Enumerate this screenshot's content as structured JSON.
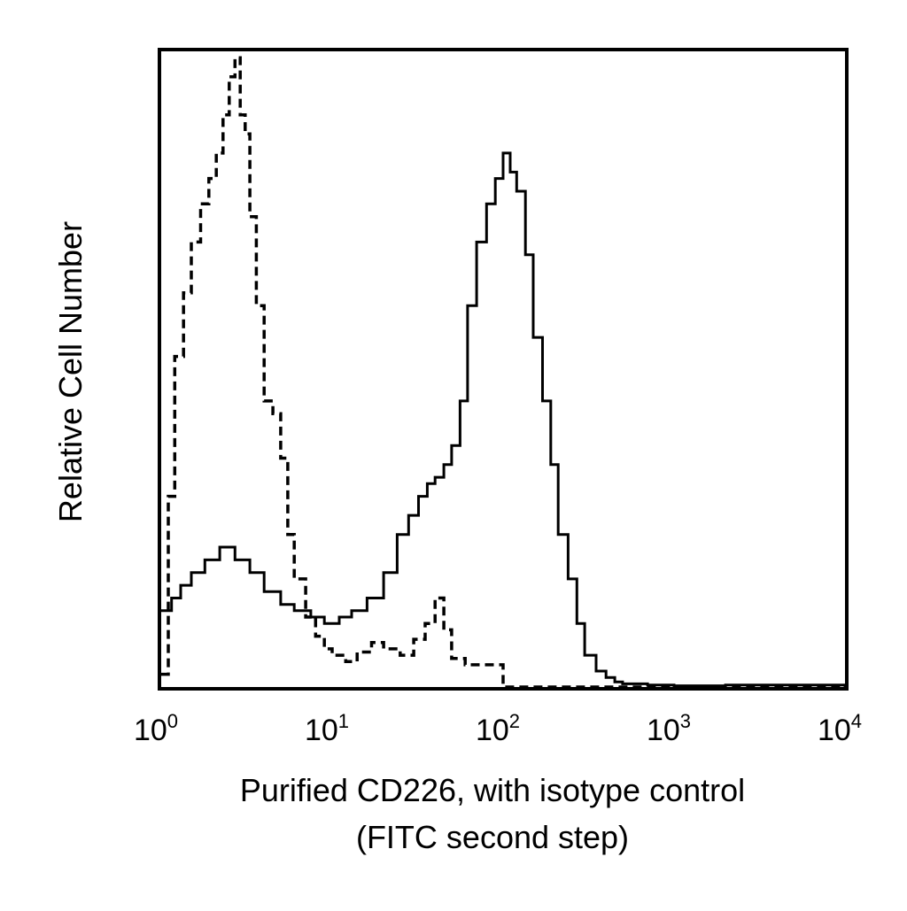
{
  "chart_data": {
    "type": "histogram",
    "x_scale": "log",
    "xlim": [
      1,
      10000
    ],
    "ylim": [
      0,
      1
    ],
    "xlabel_lines": [
      "Purified CD226, with isotype control",
      "(FITC second step)"
    ],
    "ylabel": "Relative Cell Number",
    "x_ticks": [
      {
        "base": "10",
        "exp": "0",
        "value": 1
      },
      {
        "base": "10",
        "exp": "1",
        "value": 10
      },
      {
        "base": "10",
        "exp": "2",
        "value": 100
      },
      {
        "base": "10",
        "exp": "3",
        "value": 1000
      },
      {
        "base": "10",
        "exp": "4",
        "value": 10000
      }
    ],
    "series": [
      {
        "style": "dashed",
        "color": "#000000",
        "x": [
          1.0,
          1.1,
          1.2,
          1.35,
          1.5,
          1.7,
          1.9,
          2.1,
          2.3,
          2.5,
          2.7,
          2.9,
          3.1,
          3.3,
          3.6,
          4.0,
          4.5,
          5.0,
          5.5,
          6.0,
          7.0,
          8.0,
          9.0,
          10.0,
          12.0,
          14.0,
          17.0,
          20.0,
          25.0,
          30.0,
          35.0,
          40.0,
          45.0,
          50.0,
          60.0,
          100.0,
          1000.0,
          10000.0
        ],
        "y": [
          0.02,
          0.3,
          0.52,
          0.62,
          0.7,
          0.76,
          0.8,
          0.84,
          0.9,
          0.96,
          0.99,
          0.9,
          0.87,
          0.74,
          0.6,
          0.45,
          0.43,
          0.36,
          0.24,
          0.17,
          0.11,
          0.08,
          0.06,
          0.05,
          0.04,
          0.055,
          0.07,
          0.06,
          0.05,
          0.075,
          0.1,
          0.14,
          0.09,
          0.045,
          0.035,
          0.0,
          0.0,
          0.0
        ]
      },
      {
        "style": "solid",
        "color": "#000000",
        "x": [
          1.0,
          1.15,
          1.3,
          1.5,
          1.8,
          2.2,
          2.7,
          3.3,
          4.0,
          5.0,
          6.0,
          7.5,
          9.0,
          11.0,
          13.0,
          16.0,
          20.0,
          24.0,
          28.0,
          32.0,
          36.0,
          40.0,
          45.0,
          50.0,
          56.0,
          62.0,
          70.0,
          80.0,
          90.0,
          100.0,
          110.0,
          120.0,
          135.0,
          150.0,
          170.0,
          190.0,
          210.0,
          240.0,
          270.0,
          300.0,
          350.0,
          400.0,
          450.0,
          500.0,
          700.0,
          1000.0,
          2000.0,
          10000.0
        ],
        "y": [
          0.12,
          0.14,
          0.16,
          0.18,
          0.2,
          0.22,
          0.2,
          0.18,
          0.15,
          0.13,
          0.12,
          0.11,
          0.1,
          0.11,
          0.12,
          0.14,
          0.18,
          0.24,
          0.27,
          0.3,
          0.32,
          0.33,
          0.35,
          0.38,
          0.45,
          0.6,
          0.7,
          0.76,
          0.8,
          0.84,
          0.81,
          0.78,
          0.68,
          0.55,
          0.45,
          0.35,
          0.24,
          0.17,
          0.1,
          0.05,
          0.025,
          0.015,
          0.008,
          0.005,
          0.003,
          0.002,
          0.003,
          0.0
        ]
      }
    ]
  }
}
